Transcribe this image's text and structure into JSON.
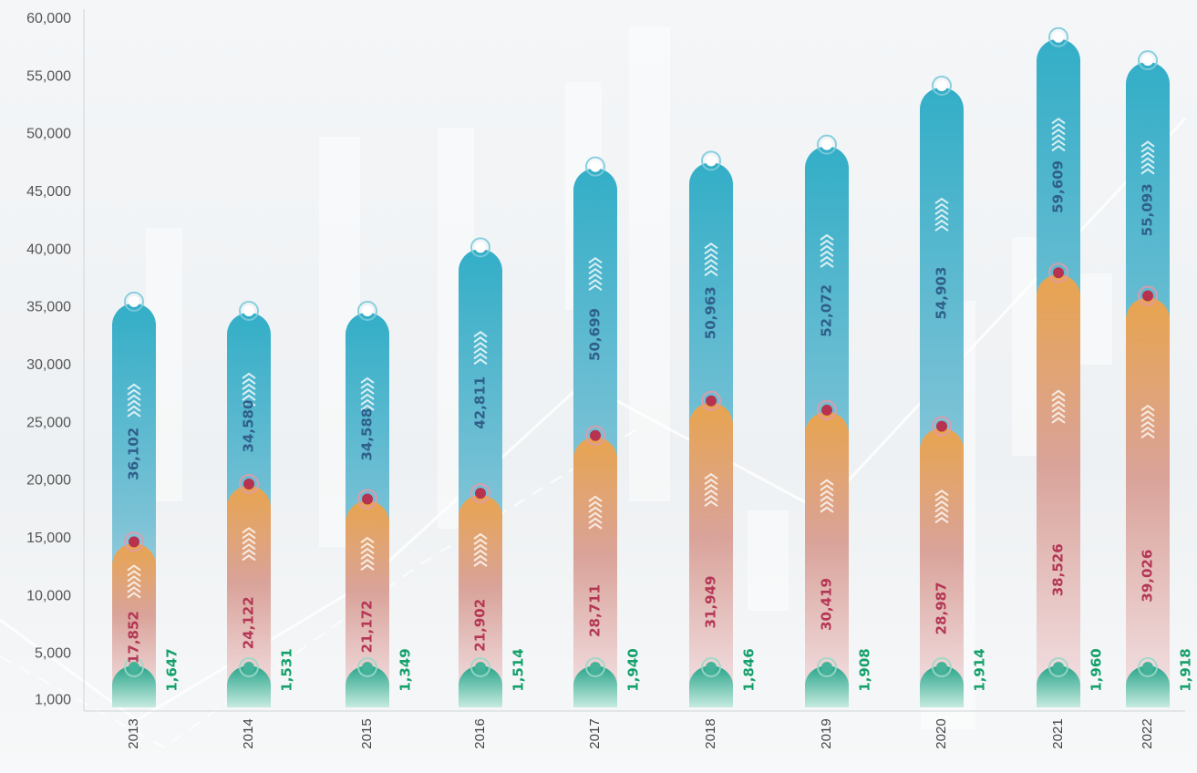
{
  "chart_data": {
    "type": "bar",
    "title": "",
    "xlabel": "",
    "ylabel": "",
    "ylim": [
      0,
      60000
    ],
    "y_ticks": [
      "60,000",
      "55,000",
      "50,000",
      "45,000",
      "40,000",
      "35,000",
      "30,000",
      "25,000",
      "20,000",
      "15,000",
      "10,000",
      "5,000",
      "1,000"
    ],
    "categories": [
      "2013",
      "2014",
      "2015",
      "2016",
      "2017",
      "2018",
      "2019",
      "2020",
      "2021",
      "2022"
    ],
    "series": [
      {
        "values": [
          36102,
          34580,
          34588,
          42811,
          50699,
          50963,
          52072,
          54903,
          59609,
          55093
        ],
        "labels": [
          "36,102",
          "34,580",
          "34,588",
          "42,811",
          "50,699",
          "50,963",
          "52,072",
          "54,903",
          "59,609",
          "55,093"
        ],
        "bar_top": [
          35300,
          34500,
          34500,
          40000,
          47000,
          47500,
          48900,
          54000,
          58200,
          56200
        ],
        "color": "#3aaec4",
        "label_color": "#2f5f8a"
      },
      {
        "values": [
          17852,
          24122,
          21172,
          21902,
          28711,
          31949,
          30419,
          28987,
          38526,
          39026
        ],
        "labels": [
          "17,852",
          "24,122",
          "21,172",
          "21,902",
          "28,711",
          "31,949",
          "30,419",
          "28,987",
          "38,526",
          "39,026"
        ],
        "bar_top": [
          14500,
          19500,
          18200,
          18700,
          23700,
          26700,
          25900,
          24500,
          37800,
          35800
        ],
        "color": "#e3a253",
        "label_color": "#b43655"
      },
      {
        "values": [
          1647,
          1531,
          1349,
          1514,
          1940,
          1846,
          1908,
          1914,
          1960,
          1918
        ],
        "labels": [
          "1,647",
          "1,531",
          "1,349",
          "1,514",
          "1,940",
          "1,846",
          "1,908",
          "1,914",
          "1,960",
          "1,918"
        ],
        "color": "#2ea88e",
        "label_color": "#14a06a"
      }
    ],
    "grid": false,
    "legend": "none"
  }
}
